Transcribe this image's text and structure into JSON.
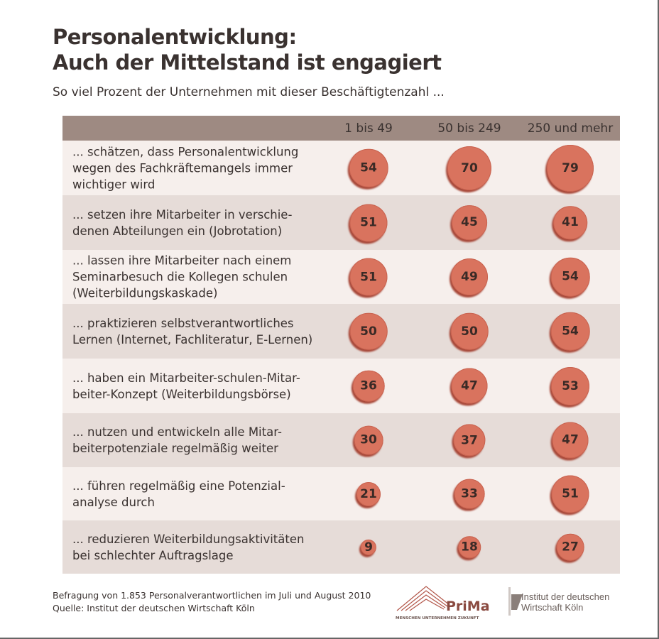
{
  "title_line1": "Personalentwicklung:",
  "title_line2": "Auch der Mittelstand ist engagiert",
  "subtitle": "So viel Prozent der Unternehmen mit dieser Beschäftigtenzahl ...",
  "footer_line1": "Befragung von 1.853 Personalverantwortlichen im Juli und August 2010",
  "footer_line2": "Quelle: Institut der deutschen Wirtschaft Köln",
  "logos": {
    "prima": "PriMa",
    "prima_tagline": "MENSCHEN UNTERNEHMEN ZUKUNFT",
    "iw_mark": "iw",
    "iw_line1": "Institut der deutschen",
    "iw_line2": "Wirtschaft Köln"
  },
  "colors": {
    "header": "#9e8a82",
    "bubble": "#d9735e",
    "row_light": "#f6efec",
    "row_dark": "#e6dcd8"
  },
  "chart_data": {
    "type": "bubble-table",
    "unit": "percent",
    "columns": [
      "1 bis 49",
      "50 bis 249",
      "250 und mehr"
    ],
    "rows": [
      {
        "label": "... schätzen, dass Personalentwicklung\nwegen des Fachkräftemangels immer\nwichtiger wird",
        "values": [
          54,
          70,
          79
        ]
      },
      {
        "label": "... setzen ihre Mitarbeiter in verschie-\ndenen Abteilungen ein (Jobrotation)",
        "values": [
          51,
          45,
          41
        ]
      },
      {
        "label": "... lassen ihre Mitarbeiter nach einem\nSeminarbesuch die Kollegen schulen\n(Weiterbildungskaskade)",
        "values": [
          51,
          49,
          54
        ]
      },
      {
        "label": "... praktizieren selbstverantwortliches\nLernen (Internet, Fachliteratur, E-Lernen)",
        "values": [
          50,
          50,
          54
        ]
      },
      {
        "label": "... haben ein Mitarbeiter-schulen-Mitar-\nbeiter-Konzept (Weiterbildungsbörse)",
        "values": [
          36,
          47,
          53
        ]
      },
      {
        "label": "... nutzen und entwickeln alle Mitar-\nbeiterpotenziale regelmäßig weiter",
        "values": [
          30,
          37,
          47
        ]
      },
      {
        "label": "... führen regelmäßig eine Potenzial-\nanalyse durch",
        "values": [
          21,
          33,
          51
        ]
      },
      {
        "label": "... reduzieren Weiterbildungsaktivitäten\nbei schlechter Auftragslage",
        "values": [
          9,
          18,
          27
        ]
      }
    ]
  }
}
